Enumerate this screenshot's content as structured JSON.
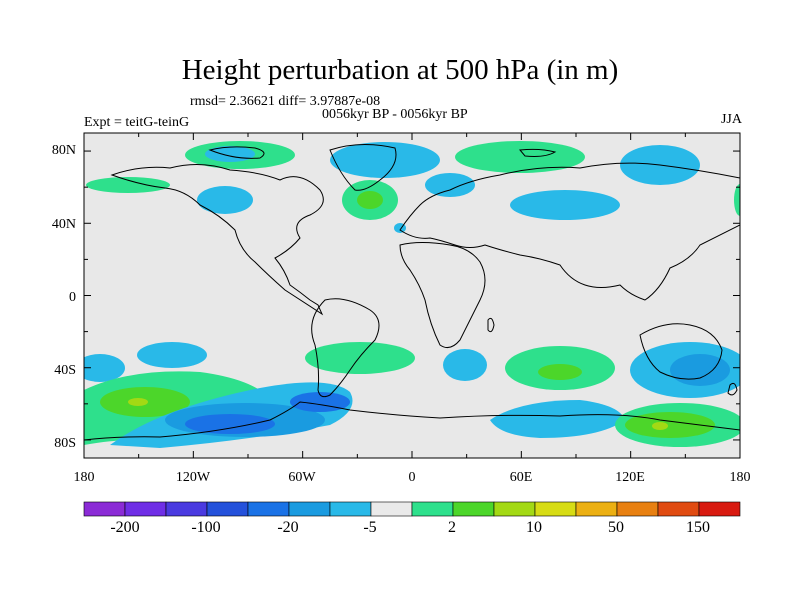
{
  "title": "Height perturbation at 500 hPa (in m)",
  "stats_line": "rmsd= 2.36621 diff= 3.97887e-08",
  "period_line": "0056kyr BP - 0056kyr BP",
  "experiment": "Expt = teitG-teinG",
  "season": "JJA",
  "lat_labels": [
    "80N",
    "40N",
    "0",
    "40S",
    "80S"
  ],
  "lon_labels": [
    "180",
    "120W",
    "60W",
    "0",
    "60E",
    "120E",
    "180"
  ],
  "colorbar": {
    "colors": [
      "#8b2bd6",
      "#6f2ee6",
      "#4a3ae0",
      "#2451db",
      "#1a72e6",
      "#1a9be0",
      "#29b9e8",
      "#eaeaea",
      "#2ee08c",
      "#4cd62a",
      "#a3d914",
      "#d7dc14",
      "#ecb013",
      "#e88011",
      "#e04b11",
      "#d81a10"
    ],
    "labels": [
      "-200",
      "-100",
      "-20",
      "-5",
      "2",
      "10",
      "50",
      "150"
    ]
  },
  "colors": {
    "neutral_fill": "#e8e8e8",
    "coastline": "#000000",
    "cyan": "#29b9e8",
    "lightblue": "#1a9be0",
    "blue": "#1a72e6",
    "teal_green": "#2ee08c",
    "green": "#4cd62a",
    "yellow_green": "#a3d914"
  }
}
